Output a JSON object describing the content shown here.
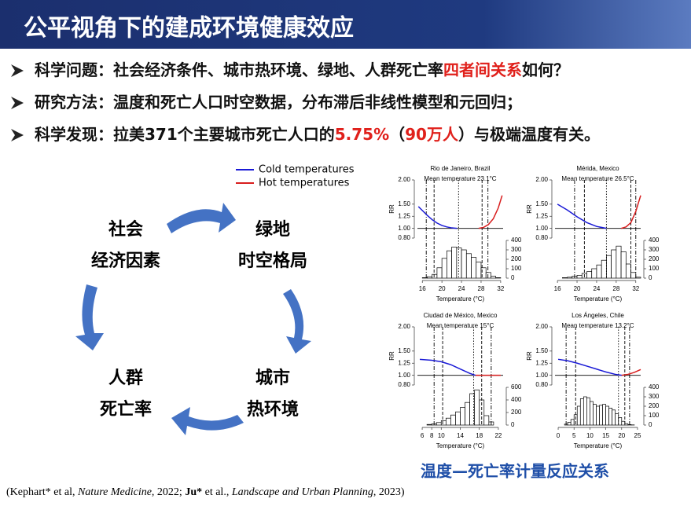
{
  "header": {
    "title": "公平视角下的建成环境健康效应"
  },
  "bullets": [
    {
      "segments": [
        {
          "text": "科学问题：社会经济条件、城市热环境、绿地、人群死亡率",
          "style": "normal"
        },
        {
          "text": "四者间关系",
          "style": "red"
        },
        {
          "text": "如何？",
          "style": "normal"
        }
      ]
    },
    {
      "segments": [
        {
          "text": "研究方法：温度和死亡人口时空数据，分布滞后非线性模型和元回归；",
          "style": "normal"
        }
      ]
    },
    {
      "segments": [
        {
          "text": "科学发现：拉美371个主要城市死亡人口的",
          "style": "normal"
        },
        {
          "text": "5.75%",
          "style": "red"
        },
        {
          "text": "（",
          "style": "normal"
        },
        {
          "text": "90万人",
          "style": "red"
        },
        {
          "text": "）与极端温度有关。",
          "style": "normal"
        }
      ]
    }
  ],
  "nodes": [
    {
      "lines": [
        "社会",
        "经济因素"
      ]
    },
    {
      "lines": [
        "绿地",
        "时空格局"
      ]
    },
    {
      "lines": [
        "城市",
        "热环境"
      ]
    },
    {
      "lines": [
        "人群",
        "死亡率"
      ]
    }
  ],
  "legend": [
    {
      "name": "Cold temperatures",
      "color": "#1a1ad6"
    },
    {
      "name": "Hot temperatures",
      "color": "#d81e1e"
    }
  ],
  "panels": [
    {
      "title": "Rio de Janeiro, Brazil",
      "subtitle": "Mean temperature 23.1°C",
      "ylabel": "RR",
      "xlabel": "Temperature (°C)",
      "xlim": [
        15,
        32.5
      ],
      "xticks": [
        16,
        20,
        24,
        28,
        32
      ],
      "ylim": [
        0.8,
        2.0
      ],
      "yticks": [
        {
          "value": 0.8,
          "label": "0.80"
        },
        {
          "value": 1.0,
          "label": "1.00"
        },
        {
          "value": 1.25,
          "label": "1.25"
        },
        {
          "value": 1.5,
          "label": "1.50"
        },
        {
          "value": 2.0,
          "label": "2.00"
        }
      ],
      "y2lim": [
        0,
        400
      ],
      "y2ticks": [
        0,
        100,
        200,
        300,
        400
      ],
      "bins": [
        16,
        17,
        18,
        19,
        20,
        21,
        22,
        23,
        24,
        25,
        26,
        27,
        28,
        29,
        30,
        31,
        32
      ],
      "counts": [
        5,
        15,
        40,
        110,
        210,
        290,
        330,
        320,
        300,
        260,
        220,
        170,
        110,
        60,
        20,
        5
      ],
      "cold": {
        "x": [
          15.2,
          16,
          17,
          18,
          19,
          20,
          21,
          22,
          23.1
        ],
        "values": [
          1.45,
          1.37,
          1.27,
          1.18,
          1.11,
          1.06,
          1.03,
          1.01,
          1.0
        ]
      },
      "hot": {
        "x": [
          27.5,
          28.5,
          29.5,
          30.5,
          31.5,
          32.3
        ],
        "values": [
          1.0,
          1.02,
          1.08,
          1.2,
          1.42,
          1.68
        ]
      },
      "vlines": [
        16.8,
        18.4,
        23.4,
        28.2,
        29.4
      ],
      "vline_styles": [
        "dashdot",
        "dash",
        "dot",
        "dash",
        "dashdot"
      ]
    },
    {
      "title": "Mérida, Mexico",
      "subtitle": "Mean temperature 26.5°C",
      "ylabel": "RR",
      "xlabel": "Temperature (°C)",
      "xlim": [
        15.5,
        33
      ],
      "xticks": [
        16,
        20,
        24,
        28,
        32
      ],
      "ylim": [
        0.8,
        2.0
      ],
      "yticks": [
        {
          "value": 0.8,
          "label": "0.80"
        },
        {
          "value": 1.0,
          "label": "1.00"
        },
        {
          "value": 1.25,
          "label": "1.25"
        },
        {
          "value": 1.5,
          "label": "1.50"
        },
        {
          "value": 2.0,
          "label": "2.00"
        }
      ],
      "y2lim": [
        0,
        400
      ],
      "y2ticks": [
        0,
        100,
        200,
        300,
        400
      ],
      "bins": [
        17,
        18,
        19,
        20,
        21,
        22,
        23,
        24,
        25,
        26,
        27,
        28,
        29,
        30,
        31,
        32,
        33
      ],
      "counts": [
        5,
        10,
        20,
        30,
        50,
        70,
        100,
        140,
        190,
        240,
        300,
        340,
        280,
        150,
        60,
        10
      ],
      "cold": {
        "x": [
          16,
          18,
          20,
          22,
          24,
          26
        ],
        "values": [
          1.5,
          1.38,
          1.24,
          1.12,
          1.04,
          1.0
        ]
      },
      "hot": {
        "x": [
          29,
          30,
          31,
          32,
          33
        ],
        "values": [
          1.0,
          1.03,
          1.12,
          1.35,
          1.68
        ]
      },
      "vlines": [
        19.5,
        21.5,
        26,
        31,
        32
      ],
      "vline_styles": [
        "dashdot",
        "dash",
        "dot",
        "dash",
        "dashdot"
      ]
    },
    {
      "title": "Ciudad de México, Mexico",
      "subtitle": "Mean temperature 15°C",
      "ylabel": "RR",
      "xlabel": "Temperature (°C)",
      "xlim": [
        5,
        23
      ],
      "xticks": [
        6,
        8,
        10,
        14,
        18,
        22
      ],
      "ylim": [
        0.8,
        2.0
      ],
      "yticks": [
        {
          "value": 0.8,
          "label": "0.80"
        },
        {
          "value": 1.0,
          "label": "1.00"
        },
        {
          "value": 1.25,
          "label": "1.25"
        },
        {
          "value": 1.5,
          "label": "1.50"
        },
        {
          "value": 2.0,
          "label": "2.00"
        }
      ],
      "y2lim": [
        0,
        600
      ],
      "y2ticks": [
        0,
        200,
        400,
        600
      ],
      "bins": [
        7,
        8,
        9,
        10,
        11,
        12,
        13,
        14,
        15,
        16,
        17,
        18,
        19,
        20,
        21
      ],
      "counts": [
        10,
        20,
        40,
        70,
        110,
        160,
        210,
        280,
        360,
        500,
        560,
        400,
        150,
        50
      ],
      "cold": {
        "x": [
          5.5,
          8,
          10,
          12,
          14,
          16,
          17.2
        ],
        "values": [
          1.33,
          1.31,
          1.28,
          1.22,
          1.13,
          1.04,
          1.0
        ]
      },
      "hot": {
        "x": [
          17.2,
          18,
          20,
          22.5
        ],
        "values": [
          1.0,
          1.0,
          1.0,
          1.0
        ]
      },
      "vlines": [
        8.5,
        10.3,
        16.8,
        18.5,
        20.5
      ],
      "vline_styles": [
        "dashdot",
        "dash",
        "dot",
        "dash",
        "dashdot"
      ]
    },
    {
      "title": "Los Ángeles, Chile",
      "subtitle": "Mean temperature 13.2°C",
      "ylabel": "RR",
      "xlabel": "Temperature (°C)",
      "xlim": [
        -1,
        26
      ],
      "xticks": [
        0,
        5,
        10,
        15,
        20,
        25
      ],
      "ylim": [
        0.8,
        2.0
      ],
      "yticks": [
        {
          "value": 0.8,
          "label": "0.80"
        },
        {
          "value": 1.0,
          "label": "1.00"
        },
        {
          "value": 1.25,
          "label": "1.25"
        },
        {
          "value": 1.5,
          "label": "1.50"
        },
        {
          "value": 2.0,
          "label": "2.00"
        }
      ],
      "y2lim": [
        0,
        400
      ],
      "y2ticks": [
        0,
        100,
        200,
        300,
        400
      ],
      "bins": [
        2,
        3,
        4,
        5,
        6,
        7,
        8,
        9,
        10,
        11,
        12,
        13,
        14,
        15,
        16,
        17,
        18,
        19,
        20,
        21,
        22,
        23,
        24
      ],
      "counts": [
        10,
        30,
        60,
        110,
        200,
        280,
        300,
        290,
        250,
        220,
        200,
        210,
        220,
        200,
        180,
        160,
        120,
        80,
        40,
        15,
        5,
        2
      ],
      "cold": {
        "x": [
          0,
          3,
          6,
          9,
          12,
          15,
          18,
          20
        ],
        "values": [
          1.33,
          1.3,
          1.25,
          1.19,
          1.13,
          1.07,
          1.02,
          1.0
        ]
      },
      "hot": {
        "x": [
          20,
          22,
          24,
          26
        ],
        "values": [
          1.0,
          1.02,
          1.06,
          1.12
        ]
      },
      "vlines": [
        2.5,
        5.5,
        19,
        21,
        22.5
      ],
      "vline_styles": [
        "dashdot",
        "dash",
        "dot",
        "dash",
        "dashdot"
      ]
    }
  ],
  "caption": "温度—死亡率计量反应关系",
  "citation": [
    {
      "text": "(Kephart* et al, ",
      "style": "normal"
    },
    {
      "text": "Nature Medicine",
      "style": "italic"
    },
    {
      "text": ", 2022; ",
      "style": "normal"
    },
    {
      "text": "Ju*",
      "style": "bold"
    },
    {
      "text": " et al., ",
      "style": "normal"
    },
    {
      "text": "Landscape and Urban Planning",
      "style": "italic"
    },
    {
      "text": ", 2023)",
      "style": "normal"
    }
  ]
}
